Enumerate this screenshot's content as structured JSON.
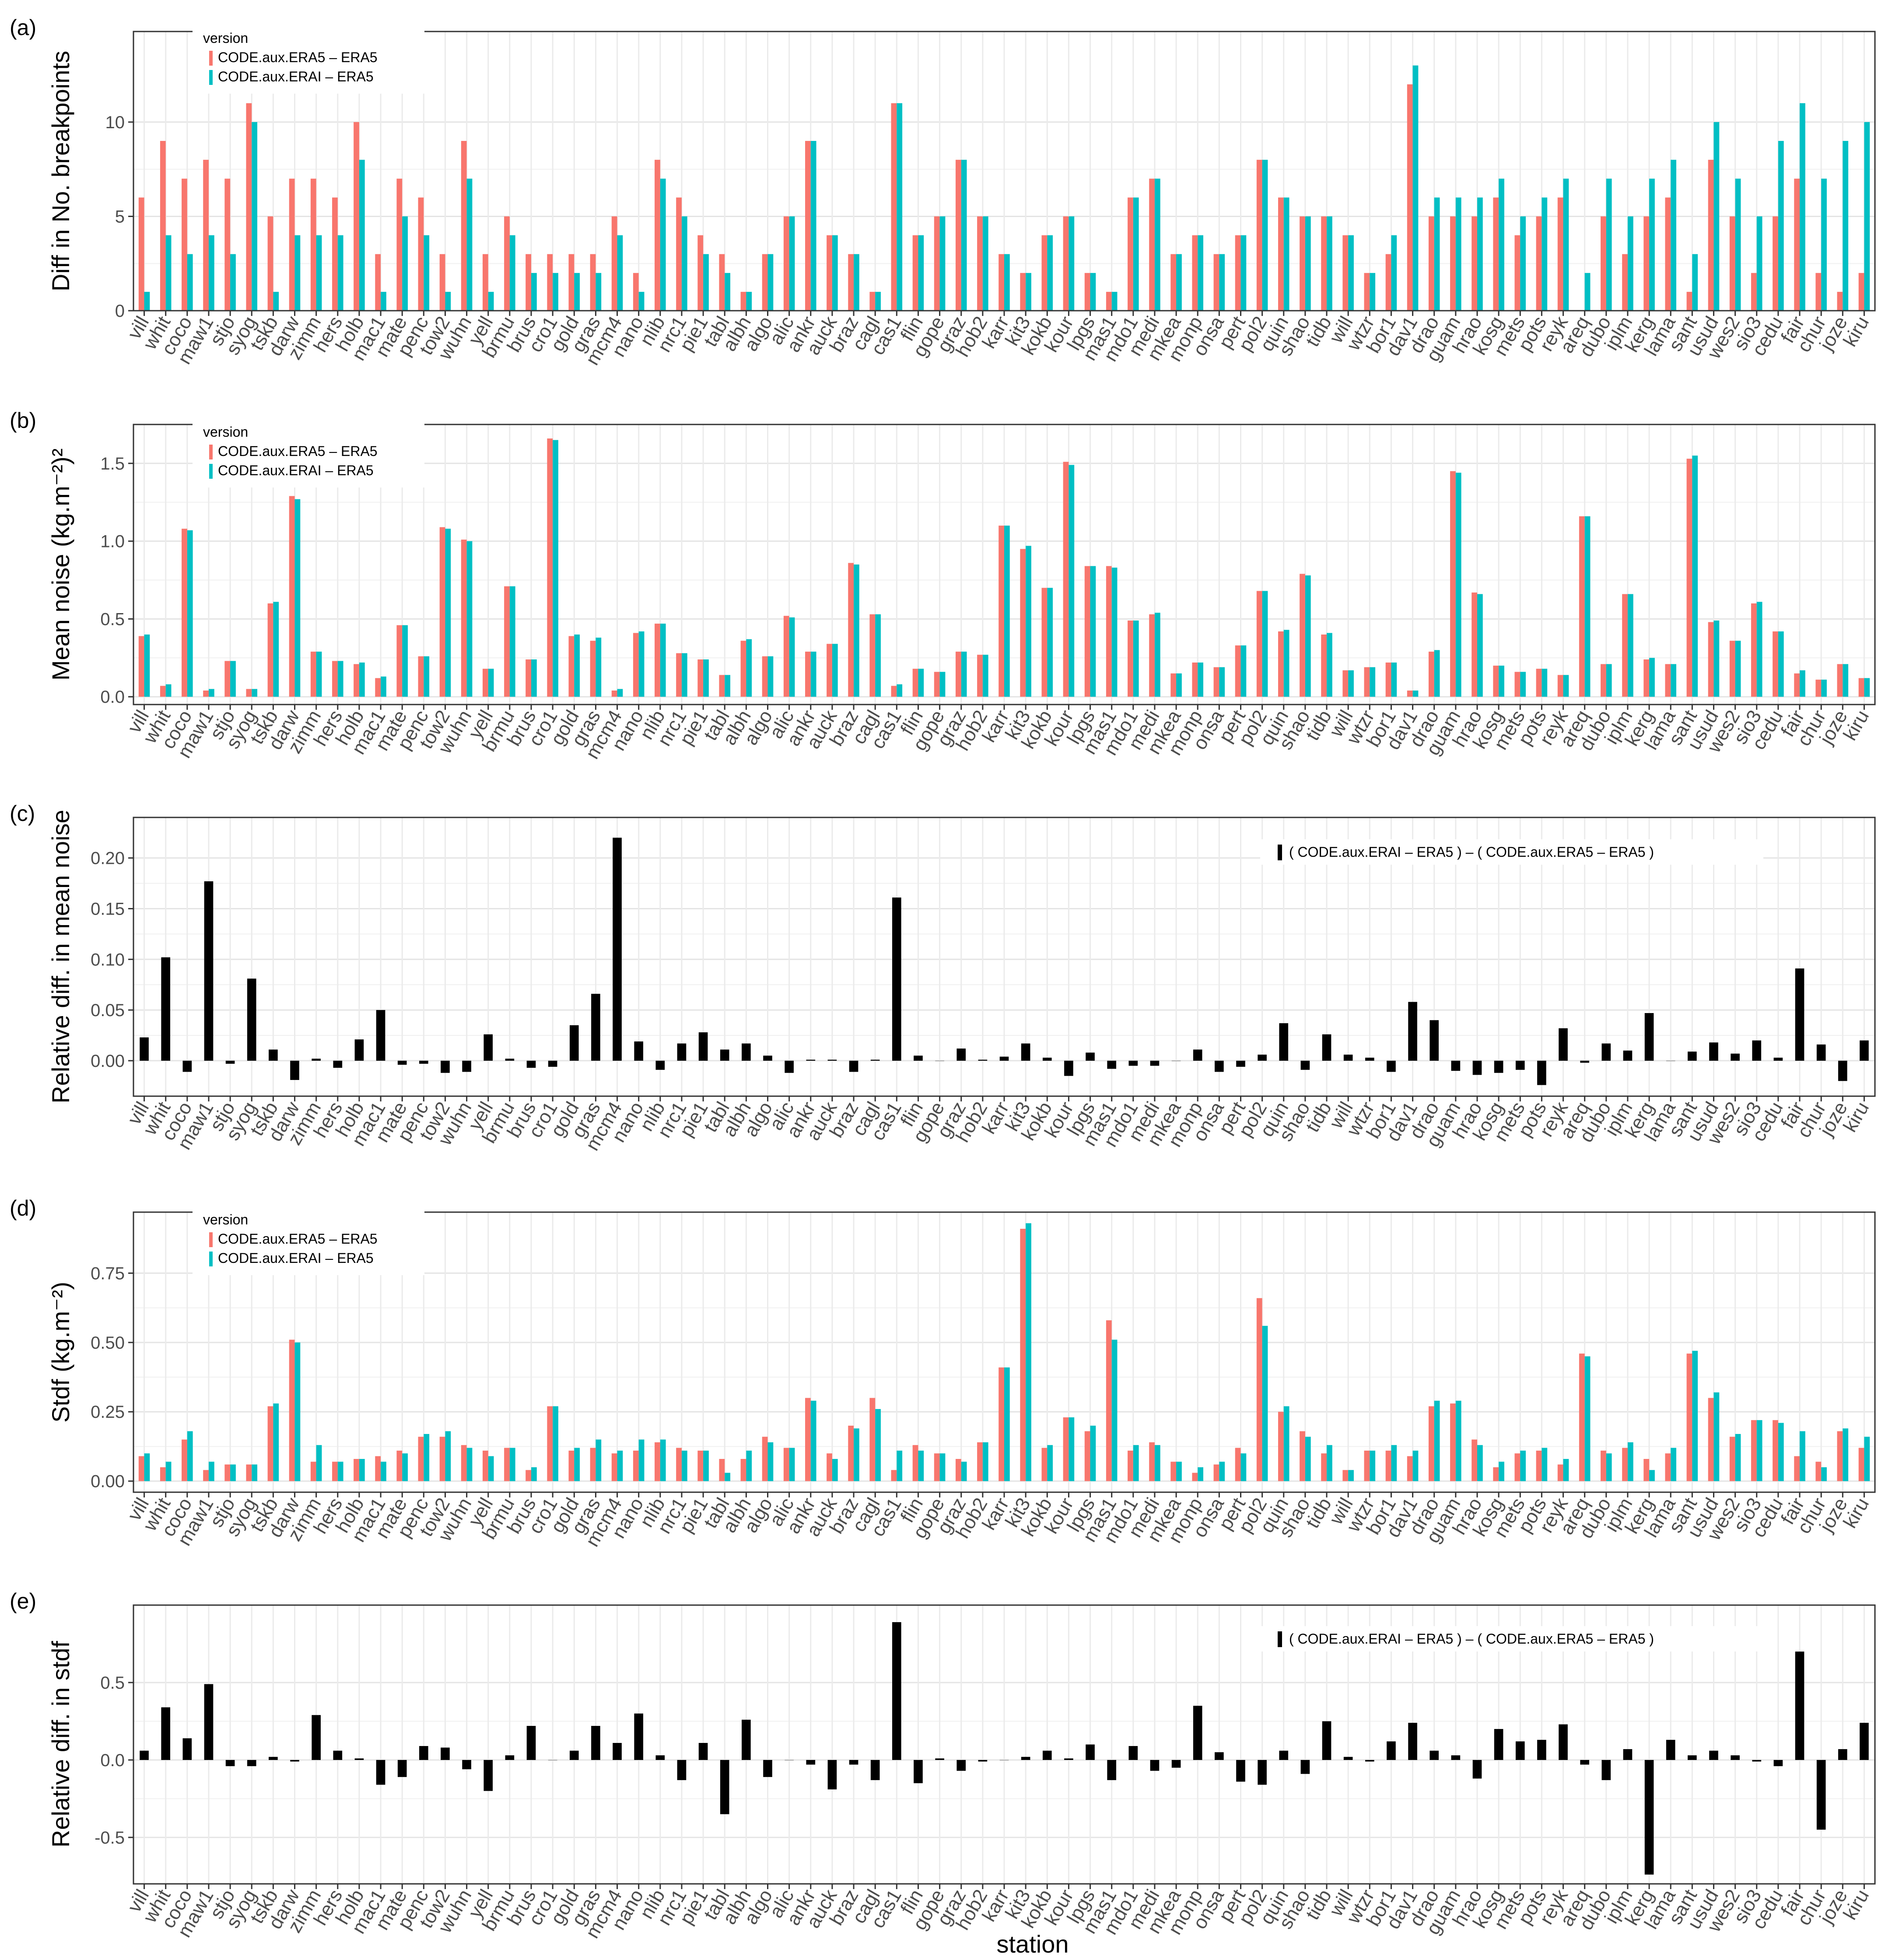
{
  "stations": [
    "vill",
    "whit",
    "coco",
    "maw1",
    "stjo",
    "syog",
    "tskb",
    "darw",
    "zimm",
    "hers",
    "holb",
    "mac1",
    "mate",
    "penc",
    "tow2",
    "wuhn",
    "yell",
    "brmu",
    "brus",
    "cro1",
    "gold",
    "gras",
    "mcm4",
    "nano",
    "nlib",
    "nrc1",
    "pie1",
    "tabl",
    "albh",
    "algo",
    "alic",
    "ankr",
    "auck",
    "braz",
    "cagl",
    "cas1",
    "flin",
    "gope",
    "graz",
    "hob2",
    "karr",
    "kit3",
    "kokb",
    "kour",
    "lpgs",
    "mas1",
    "mdo1",
    "medi",
    "mkea",
    "monp",
    "onsa",
    "pert",
    "pol2",
    "quin",
    "shao",
    "tidb",
    "will",
    "wtzr",
    "bor1",
    "dav1",
    "drao",
    "guam",
    "hrao",
    "kosg",
    "mets",
    "pots",
    "reyk",
    "areq",
    "dubo",
    "iplm",
    "kerg",
    "lama",
    "sant",
    "usud",
    "wes2",
    "sio3",
    "cedu",
    "fair",
    "chur",
    "joze",
    "kiru"
  ],
  "legend": {
    "title": "version",
    "series_labels": [
      "CODE.aux.ERA5 – ERA5",
      "CODE.aux.ERAI – ERA5"
    ],
    "diff_label": "( CODE.aux.ERAI – ERA5 )  –  ( CODE.aux.ERA5 – ERA5 )"
  },
  "colors": {
    "era5": "#F8766D",
    "erai": "#00BFC4",
    "diff": "#000000"
  },
  "x_axis_title": "station",
  "chart_data": [
    {
      "panel": "(a)",
      "type": "bar",
      "ylabel": "Diff in No. breakpoints",
      "ylim": [
        0,
        14.8
      ],
      "ticks": [
        0,
        5,
        10
      ],
      "tick_labels": [
        "0",
        "5",
        "10"
      ],
      "legend": true,
      "series": [
        {
          "name": "CODE.aux.ERA5 – ERA5",
          "values": [
            6,
            9,
            7,
            8,
            7,
            11,
            5,
            7,
            7,
            6,
            10,
            3,
            7,
            6,
            3,
            9,
            3,
            5,
            3,
            3,
            3,
            3,
            5,
            2,
            8,
            6,
            4,
            3,
            1,
            3,
            5,
            9,
            4,
            3,
            1,
            11,
            4,
            5,
            8,
            5,
            3,
            2,
            4,
            5,
            2,
            1,
            6,
            7,
            3,
            4,
            3,
            4,
            8,
            6,
            5,
            5,
            4,
            2,
            3,
            12,
            5,
            5,
            5,
            6,
            4,
            5,
            6,
            0,
            5,
            3,
            5,
            6,
            1,
            8,
            5,
            2,
            5,
            7,
            2,
            1,
            2
          ]
        },
        {
          "name": "CODE.aux.ERAI – ERA5",
          "values": [
            1,
            4,
            3,
            4,
            3,
            10,
            1,
            4,
            4,
            4,
            8,
            1,
            5,
            4,
            1,
            7,
            1,
            4,
            2,
            2,
            2,
            2,
            4,
            1,
            7,
            5,
            3,
            2,
            1,
            3,
            5,
            9,
            4,
            3,
            1,
            11,
            4,
            5,
            8,
            5,
            3,
            2,
            4,
            5,
            2,
            1,
            6,
            7,
            3,
            4,
            3,
            4,
            8,
            6,
            5,
            5,
            4,
            2,
            4,
            13,
            6,
            6,
            6,
            7,
            5,
            6,
            7,
            2,
            7,
            5,
            7,
            8,
            3,
            10,
            7,
            5,
            9,
            11,
            7,
            9,
            10
          ]
        }
      ]
    },
    {
      "panel": "(b)",
      "type": "bar",
      "ylabel": "Mean noise (kg.m⁻²)²",
      "ylim": [
        -0.05,
        1.75
      ],
      "ticks": [
        0.0,
        0.5,
        1.0,
        1.5
      ],
      "tick_labels": [
        "0.0",
        "0.5",
        "1.0",
        "1.5"
      ],
      "legend": true,
      "series": [
        {
          "name": "CODE.aux.ERA5 – ERA5",
          "values": [
            0.39,
            0.07,
            1.08,
            0.04,
            0.23,
            0.05,
            0.6,
            1.29,
            0.29,
            0.23,
            0.21,
            0.12,
            0.46,
            0.26,
            1.09,
            1.01,
            0.18,
            0.71,
            0.24,
            1.66,
            0.39,
            0.36,
            0.04,
            0.41,
            0.47,
            0.28,
            0.24,
            0.14,
            0.36,
            0.26,
            0.52,
            0.29,
            0.34,
            0.86,
            0.53,
            0.07,
            0.18,
            0.16,
            0.29,
            0.27,
            1.1,
            0.95,
            0.7,
            1.51,
            0.84,
            0.84,
            0.49,
            0.53,
            0.15,
            0.22,
            0.19,
            0.33,
            0.68,
            0.42,
            0.79,
            0.4,
            0.17,
            0.19,
            0.22,
            0.04,
            0.29,
            1.45,
            0.67,
            0.2,
            0.16,
            0.18,
            0.14,
            1.16,
            0.21,
            0.66,
            0.24,
            0.21,
            1.53,
            0.48,
            0.36,
            0.6,
            0.42,
            0.15,
            0.11,
            0.21,
            0.12
          ]
        },
        {
          "name": "CODE.aux.ERAI – ERA5",
          "values": [
            0.4,
            0.08,
            1.07,
            0.05,
            0.23,
            0.05,
            0.61,
            1.27,
            0.29,
            0.23,
            0.22,
            0.13,
            0.46,
            0.26,
            1.08,
            1.0,
            0.18,
            0.71,
            0.24,
            1.65,
            0.4,
            0.38,
            0.05,
            0.42,
            0.47,
            0.28,
            0.24,
            0.14,
            0.37,
            0.26,
            0.51,
            0.29,
            0.34,
            0.85,
            0.53,
            0.08,
            0.18,
            0.16,
            0.29,
            0.27,
            1.1,
            0.97,
            0.7,
            1.49,
            0.84,
            0.83,
            0.49,
            0.54,
            0.15,
            0.22,
            0.19,
            0.33,
            0.68,
            0.43,
            0.78,
            0.41,
            0.17,
            0.19,
            0.22,
            0.04,
            0.3,
            1.44,
            0.66,
            0.2,
            0.16,
            0.18,
            0.14,
            1.16,
            0.21,
            0.66,
            0.25,
            0.21,
            1.55,
            0.49,
            0.36,
            0.61,
            0.42,
            0.17,
            0.11,
            0.21,
            0.12
          ]
        }
      ]
    },
    {
      "panel": "(c)",
      "type": "bar",
      "ylabel": "Relative diff. in mean noise",
      "ylim": [
        -0.035,
        0.24
      ],
      "ticks": [
        0.0,
        0.05,
        0.1,
        0.15,
        0.2
      ],
      "tick_labels": [
        "0.00",
        "0.05",
        "0.10",
        "0.15",
        "0.20"
      ],
      "legend": false,
      "series": [
        {
          "name": "( CODE.aux.ERAI – ERA5 )  –  ( CODE.aux.ERA5 – ERA5 )",
          "values": [
            0.023,
            0.102,
            -0.011,
            0.177,
            -0.003,
            0.081,
            0.011,
            -0.019,
            0.002,
            -0.007,
            0.021,
            0.05,
            -0.004,
            -0.003,
            -0.012,
            -0.011,
            0.026,
            0.002,
            -0.007,
            -0.006,
            0.035,
            0.066,
            0.22,
            0.019,
            -0.009,
            0.017,
            0.028,
            0.011,
            0.017,
            0.005,
            -0.012,
            0.001,
            0.001,
            -0.011,
            0.001,
            0.161,
            0.005,
            0.0,
            0.012,
            0.001,
            0.004,
            0.017,
            0.003,
            -0.015,
            0.008,
            -0.008,
            -0.005,
            -0.005,
            0.0,
            0.011,
            -0.011,
            -0.006,
            0.006,
            0.037,
            -0.009,
            0.026,
            0.006,
            0.003,
            -0.011,
            0.058,
            0.04,
            -0.01,
            -0.014,
            -0.012,
            -0.009,
            -0.024,
            0.032,
            -0.002,
            0.017,
            0.01,
            0.047,
            0.0,
            0.009,
            0.018,
            0.007,
            0.02,
            0.003,
            0.091,
            0.016,
            -0.02,
            0.02
          ]
        }
      ]
    },
    {
      "panel": "(d)",
      "type": "bar",
      "ylabel": "Stdf (kg.m⁻²)",
      "ylim": [
        -0.04,
        0.97
      ],
      "ticks": [
        0.0,
        0.25,
        0.5,
        0.75
      ],
      "tick_labels": [
        "0.00",
        "0.25",
        "0.50",
        "0.75"
      ],
      "legend": true,
      "series": [
        {
          "name": "CODE.aux.ERA5 – ERA5",
          "values": [
            0.09,
            0.05,
            0.15,
            0.04,
            0.06,
            0.06,
            0.27,
            0.51,
            0.07,
            0.07,
            0.08,
            0.09,
            0.11,
            0.16,
            0.16,
            0.13,
            0.11,
            0.12,
            0.04,
            0.27,
            0.11,
            0.12,
            0.1,
            0.11,
            0.14,
            0.12,
            0.11,
            0.08,
            0.08,
            0.16,
            0.12,
            0.3,
            0.1,
            0.2,
            0.3,
            0.04,
            0.13,
            0.1,
            0.08,
            0.14,
            0.41,
            0.91,
            0.12,
            0.23,
            0.18,
            0.58,
            0.11,
            0.14,
            0.07,
            0.03,
            0.06,
            0.12,
            0.66,
            0.25,
            0.18,
            0.1,
            0.04,
            0.11,
            0.11,
            0.09,
            0.27,
            0.28,
            0.15,
            0.05,
            0.1,
            0.11,
            0.06,
            0.46,
            0.11,
            0.12,
            0.08,
            0.1,
            0.46,
            0.3,
            0.16,
            0.22,
            0.22,
            0.09,
            0.07,
            0.18,
            0.12
          ]
        },
        {
          "name": "CODE.aux.ERAI – ERA5",
          "values": [
            0.1,
            0.07,
            0.18,
            0.07,
            0.06,
            0.06,
            0.28,
            0.5,
            0.13,
            0.07,
            0.08,
            0.07,
            0.1,
            0.17,
            0.18,
            0.12,
            0.09,
            0.12,
            0.05,
            0.27,
            0.12,
            0.15,
            0.11,
            0.15,
            0.15,
            0.11,
            0.11,
            0.03,
            0.11,
            0.14,
            0.12,
            0.29,
            0.08,
            0.19,
            0.26,
            0.11,
            0.11,
            0.1,
            0.07,
            0.14,
            0.41,
            0.93,
            0.13,
            0.23,
            0.2,
            0.51,
            0.13,
            0.13,
            0.07,
            0.05,
            0.07,
            0.1,
            0.56,
            0.27,
            0.16,
            0.13,
            0.04,
            0.11,
            0.13,
            0.11,
            0.29,
            0.29,
            0.13,
            0.07,
            0.11,
            0.12,
            0.08,
            0.45,
            0.1,
            0.14,
            0.04,
            0.12,
            0.47,
            0.32,
            0.17,
            0.22,
            0.21,
            0.18,
            0.05,
            0.19,
            0.16
          ]
        }
      ]
    },
    {
      "panel": "(e)",
      "type": "bar",
      "ylabel": "Relative diff. in stdf",
      "ylim": [
        -0.8,
        1.0
      ],
      "ticks": [
        -0.5,
        0.0,
        0.5
      ],
      "tick_labels": [
        "-0.5",
        "0.0",
        "0.5"
      ],
      "legend": false,
      "series": [
        {
          "name": "( CODE.aux.ERAI – ERA5 )  –  ( CODE.aux.ERA5 – ERA5 )",
          "values": [
            0.06,
            0.34,
            0.14,
            0.49,
            -0.04,
            -0.04,
            0.02,
            -0.01,
            0.29,
            0.06,
            0.01,
            -0.16,
            -0.11,
            0.09,
            0.08,
            -0.06,
            -0.2,
            0.03,
            0.22,
            0.0,
            0.06,
            0.22,
            0.11,
            0.3,
            0.03,
            -0.13,
            0.11,
            -0.35,
            0.26,
            -0.11,
            0.0,
            -0.03,
            -0.19,
            -0.03,
            -0.13,
            0.89,
            -0.15,
            0.01,
            -0.07,
            -0.01,
            0.0,
            0.02,
            0.06,
            0.01,
            0.1,
            -0.13,
            0.09,
            -0.07,
            -0.05,
            0.35,
            0.05,
            -0.14,
            -0.16,
            0.06,
            -0.09,
            0.25,
            0.02,
            -0.01,
            0.12,
            0.24,
            0.06,
            0.03,
            -0.12,
            0.2,
            0.12,
            0.13,
            0.23,
            -0.03,
            -0.13,
            0.07,
            -0.74,
            0.13,
            0.03,
            0.06,
            0.03,
            -0.01,
            -0.04,
            0.7,
            -0.45,
            0.07,
            0.24
          ]
        }
      ]
    }
  ]
}
